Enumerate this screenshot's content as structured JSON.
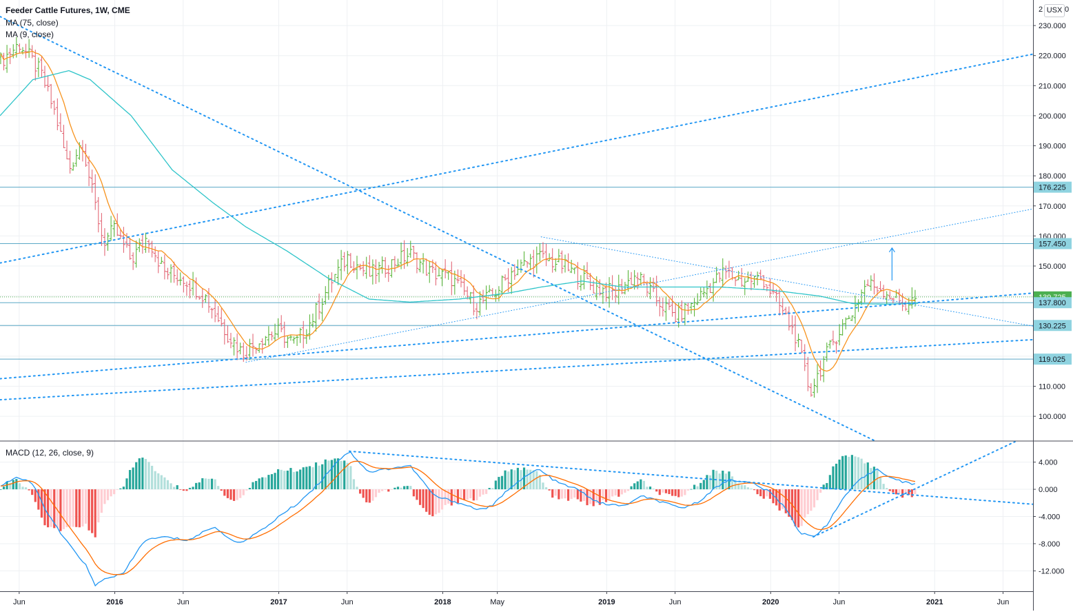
{
  "header": {
    "title": "Feeder Cattle Futures, 1W, CME",
    "study_1": "MA (75, close)",
    "study_2": "MA (9, close)",
    "macd_label": "MACD (12, 26, close, 9)"
  },
  "currency": {
    "badge": "USX",
    "prefix": "2",
    "suffix": "0"
  },
  "colors": {
    "up_bar": "#4caf2a",
    "down_bar": "#e05a6a",
    "ma75": "#2ec4c9",
    "ma9": "#f7931e",
    "trend": "#2196f3",
    "hline": "#5aa8c6",
    "macd_line": "#2196f3",
    "signal_line": "#ff6d00",
    "hist_pos_strong": "#26a69a",
    "hist_pos_weak": "#b2dfdb",
    "hist_neg_strong": "#ef5350",
    "hist_neg_weak": "#ffcdd2",
    "last_price": "#4caf50",
    "price_tag": "#8fd3e0"
  },
  "price_axis": {
    "ticks": [
      "230.000",
      "220.000",
      "210.000",
      "200.000",
      "190.000",
      "180.000",
      "170.000",
      "160.000",
      "150.000",
      "110.000",
      "100.000"
    ],
    "tick_values": [
      230,
      220,
      210,
      200,
      190,
      180,
      170,
      160,
      150,
      110,
      100
    ],
    "ylim": [
      92.0,
      238.5
    ],
    "levels": [
      {
        "label": "176.225",
        "value": 176.225,
        "type": "hline"
      },
      {
        "label": "157.450",
        "value": 157.45,
        "type": "hline"
      },
      {
        "label": "139.725",
        "value": 139.725,
        "type": "last"
      },
      {
        "label": "137.800",
        "value": 137.8,
        "type": "hline"
      },
      {
        "label": "130.225",
        "value": 130.225,
        "type": "hline"
      },
      {
        "label": "119.025",
        "value": 119.025,
        "type": "hline"
      }
    ]
  },
  "macd_axis": {
    "ticks": [
      "4.000",
      "0.000",
      "-4.000",
      "-8.000",
      "-12.000"
    ],
    "tick_values": [
      4,
      0,
      -4,
      -8,
      -12
    ],
    "ylim": [
      -15.0,
      7.0
    ]
  },
  "time_axis": {
    "ticks": [
      "Jun",
      "2016",
      "Jun",
      "2017",
      "Jun",
      "2018",
      "May",
      "2019",
      "Jun",
      "2020",
      "Jun",
      "2021",
      "Jun"
    ],
    "tick_dates": [
      2015.417,
      2016.0,
      2016.417,
      2017.0,
      2017.417,
      2018.0,
      2018.333,
      2019.0,
      2019.417,
      2020.0,
      2020.417,
      2021.0,
      2021.417
    ],
    "xlim": [
      2015.3,
      2021.6
    ],
    "bold": [
      "2016",
      "2017",
      "2018",
      "2019",
      "2020",
      "2021"
    ]
  },
  "chart_data": {
    "type": "ohlc",
    "title": "Feeder Cattle Futures, 1W, CME",
    "price_anchors": [
      [
        2015.3,
        218
      ],
      [
        2015.42,
        224
      ],
      [
        2015.55,
        214
      ],
      [
        2015.64,
        200
      ],
      [
        2015.72,
        182
      ],
      [
        2015.8,
        192
      ],
      [
        2015.86,
        175
      ],
      [
        2015.93,
        158
      ],
      [
        2016.0,
        162
      ],
      [
        2016.1,
        152
      ],
      [
        2016.2,
        160
      ],
      [
        2016.3,
        148
      ],
      [
        2016.42,
        146
      ],
      [
        2016.55,
        140
      ],
      [
        2016.68,
        128
      ],
      [
        2016.78,
        121
      ],
      [
        2016.92,
        127
      ],
      [
        2017.0,
        128
      ],
      [
        2017.1,
        124
      ],
      [
        2017.2,
        132
      ],
      [
        2017.32,
        145
      ],
      [
        2017.42,
        153
      ],
      [
        2017.55,
        147
      ],
      [
        2017.66,
        150
      ],
      [
        2017.8,
        154
      ],
      [
        2017.92,
        148
      ],
      [
        2018.05,
        146
      ],
      [
        2018.2,
        137
      ],
      [
        2018.3,
        140
      ],
      [
        2018.42,
        148
      ],
      [
        2018.58,
        153
      ],
      [
        2018.7,
        151
      ],
      [
        2018.82,
        147
      ],
      [
        2018.92,
        143
      ],
      [
        2019.05,
        141
      ],
      [
        2019.18,
        147
      ],
      [
        2019.3,
        139
      ],
      [
        2019.42,
        133
      ],
      [
        2019.52,
        137
      ],
      [
        2019.62,
        143
      ],
      [
        2019.72,
        148
      ],
      [
        2019.82,
        145
      ],
      [
        2019.95,
        146
      ],
      [
        2020.05,
        137
      ],
      [
        2020.15,
        127
      ],
      [
        2020.24,
        108
      ],
      [
        2020.32,
        118
      ],
      [
        2020.4,
        127
      ],
      [
        2020.5,
        135
      ],
      [
        2020.58,
        144
      ],
      [
        2020.66,
        143
      ],
      [
        2020.74,
        140
      ],
      [
        2020.82,
        137
      ],
      [
        2020.9,
        139.725
      ]
    ],
    "ma75_anchors": [
      [
        2015.3,
        200
      ],
      [
        2015.5,
        212
      ],
      [
        2015.72,
        215
      ],
      [
        2015.85,
        212
      ],
      [
        2016.1,
        200
      ],
      [
        2016.35,
        182
      ],
      [
        2016.6,
        171
      ],
      [
        2016.8,
        163
      ],
      [
        2017.05,
        155
      ],
      [
        2017.3,
        146
      ],
      [
        2017.55,
        139
      ],
      [
        2017.8,
        138
      ],
      [
        2018.1,
        139
      ],
      [
        2018.4,
        141
      ],
      [
        2018.6,
        143
      ],
      [
        2018.85,
        145
      ],
      [
        2019.1,
        143
      ],
      [
        2019.4,
        143
      ],
      [
        2019.7,
        143
      ],
      [
        2020.0,
        142
      ],
      [
        2020.3,
        140
      ],
      [
        2020.5,
        137.5
      ],
      [
        2020.7,
        137.3
      ],
      [
        2020.9,
        137.6
      ]
    ],
    "macd_anchors": [
      [
        2015.3,
        0.5
      ],
      [
        2015.4,
        1.8
      ],
      [
        2015.5,
        0.8
      ],
      [
        2015.6,
        -4
      ],
      [
        2015.7,
        -7.5
      ],
      [
        2015.82,
        -11
      ],
      [
        2015.88,
        -14.2
      ],
      [
        2015.95,
        -13
      ],
      [
        2016.05,
        -12.5
      ],
      [
        2016.18,
        -7.5
      ],
      [
        2016.3,
        -7
      ],
      [
        2016.45,
        -7.5
      ],
      [
        2016.6,
        -5.5
      ],
      [
        2016.75,
        -8
      ],
      [
        2016.9,
        -6
      ],
      [
        2017.0,
        -4
      ],
      [
        2017.12,
        -2
      ],
      [
        2017.25,
        1
      ],
      [
        2017.35,
        4
      ],
      [
        2017.43,
        5.6
      ],
      [
        2017.55,
        2.5
      ],
      [
        2017.66,
        3
      ],
      [
        2017.8,
        3.5
      ],
      [
        2017.95,
        -1
      ],
      [
        2018.1,
        -2
      ],
      [
        2018.22,
        -3
      ],
      [
        2018.3,
        -2.5
      ],
      [
        2018.42,
        0.5
      ],
      [
        2018.58,
        3
      ],
      [
        2018.7,
        1
      ],
      [
        2018.82,
        0
      ],
      [
        2018.95,
        -2
      ],
      [
        2019.1,
        -2.5
      ],
      [
        2019.22,
        -1
      ],
      [
        2019.35,
        -2
      ],
      [
        2019.45,
        -2.8
      ],
      [
        2019.55,
        -2
      ],
      [
        2019.65,
        0
      ],
      [
        2019.75,
        1.5
      ],
      [
        2019.9,
        0.8
      ],
      [
        2020.0,
        -0.5
      ],
      [
        2020.1,
        -3
      ],
      [
        2020.18,
        -6.5
      ],
      [
        2020.26,
        -7
      ],
      [
        2020.35,
        -5
      ],
      [
        2020.45,
        -1
      ],
      [
        2020.55,
        1.5
      ],
      [
        2020.65,
        3
      ],
      [
        2020.75,
        1.5
      ],
      [
        2020.85,
        0.8
      ],
      [
        2020.9,
        1.0
      ]
    ],
    "trendlines": [
      {
        "p": [
          [
            2015.3,
            233
          ],
          [
            2020.63,
            92
          ]
        ],
        "style": "dotted-thick"
      },
      {
        "p": [
          [
            2015.3,
            151
          ],
          [
            2021.6,
            220.5
          ]
        ],
        "style": "dotted-thick"
      },
      {
        "p": [
          [
            2015.3,
            105.5
          ],
          [
            2021.6,
            125.5
          ]
        ],
        "style": "dotted-thick"
      },
      {
        "p": [
          [
            2015.3,
            112.5
          ],
          [
            2021.6,
            141
          ]
        ],
        "style": "dotted-thick"
      },
      {
        "p": [
          [
            2016.8,
            118
          ],
          [
            2021.6,
            169
          ]
        ],
        "style": "dotted-thin"
      },
      {
        "p": [
          [
            2018.6,
            159.7
          ],
          [
            2021.6,
            130
          ]
        ],
        "style": "dotted-thin"
      }
    ],
    "macd_trendlines": [
      {
        "p": [
          [
            2017.43,
            5.6
          ],
          [
            2021.6,
            -2.2
          ]
        ]
      },
      {
        "p": [
          [
            2020.26,
            -7
          ],
          [
            2021.49,
            7
          ]
        ]
      }
    ],
    "arrow": {
      "x": 2020.74,
      "from": 145.2,
      "to": 156
    }
  }
}
